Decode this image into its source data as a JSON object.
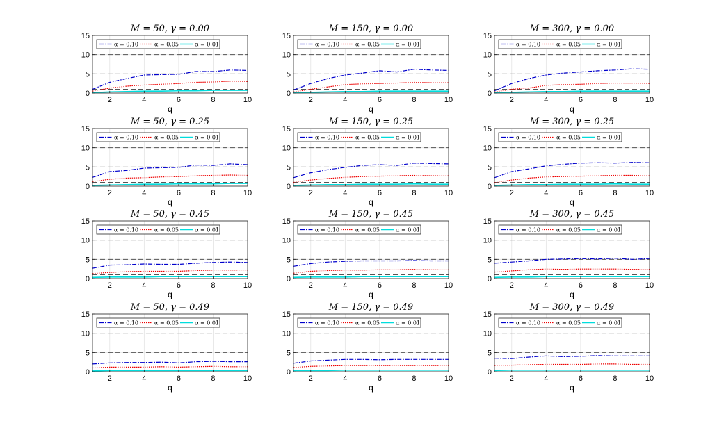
{
  "chart_data": {
    "type": "line",
    "layout_rows": 4,
    "layout_cols": 3,
    "grid": true,
    "legend_placement": "top-left",
    "xlabel": "q",
    "xlim": [
      1,
      10
    ],
    "ylim": [
      0,
      15
    ],
    "xticks": [
      2,
      4,
      6,
      8,
      10
    ],
    "yticks": [
      0,
      5,
      10,
      15
    ],
    "reference_lines": [
      {
        "y": 10,
        "color": "#555555",
        "style": "dashed"
      },
      {
        "y": 5,
        "color": "#555555",
        "style": "dashed"
      },
      {
        "y": 1,
        "color": "#555555",
        "style": "dashed"
      }
    ],
    "series_styles": [
      {
        "name": "α = 0.10",
        "color": "#0000cc",
        "style": "dash-dot"
      },
      {
        "name": "α = 0.05",
        "color": "#ee0000",
        "style": "dotted"
      },
      {
        "name": "α = 0.01",
        "color": "#00dddd",
        "style": "solid"
      }
    ],
    "x": [
      1,
      2,
      3,
      4,
      5,
      6,
      7,
      8,
      9,
      10
    ],
    "panels": [
      {
        "title": "M = 50, γ = 0.00",
        "series": [
          {
            "name": "α = 0.10",
            "values": [
              1.0,
              2.8,
              3.8,
              4.7,
              4.8,
              4.9,
              5.6,
              5.6,
              6.0,
              5.9
            ]
          },
          {
            "name": "α = 0.05",
            "values": [
              0.5,
              1.3,
              1.8,
              2.1,
              2.3,
              2.5,
              2.8,
              2.9,
              3.1,
              3.0
            ]
          },
          {
            "name": "α = 0.01",
            "values": [
              0.1,
              0.3,
              0.4,
              0.5,
              0.5,
              0.6,
              0.6,
              0.7,
              0.7,
              0.7
            ]
          }
        ]
      },
      {
        "title": "M = 150, γ = 0.00",
        "series": [
          {
            "name": "α = 0.10",
            "values": [
              0.8,
              2.5,
              3.8,
              4.7,
              5.2,
              5.8,
              5.5,
              6.2,
              6.0,
              5.9
            ]
          },
          {
            "name": "α = 0.05",
            "values": [
              0.3,
              1.0,
              1.6,
              2.2,
              2.4,
              2.5,
              2.6,
              2.8,
              2.7,
              2.7
            ]
          },
          {
            "name": "α = 0.01",
            "values": [
              0.1,
              0.2,
              0.3,
              0.4,
              0.4,
              0.5,
              0.5,
              0.5,
              0.5,
              0.5
            ]
          }
        ]
      },
      {
        "title": "M = 300, γ = 0.00",
        "series": [
          {
            "name": "α = 0.10",
            "values": [
              0.6,
              2.5,
              3.8,
              4.7,
              5.2,
              5.5,
              5.8,
              6.0,
              6.3,
              6.2
            ]
          },
          {
            "name": "α = 0.05",
            "values": [
              0.3,
              1.0,
              1.3,
              2.0,
              2.2,
              2.3,
              2.5,
              2.6,
              2.6,
              2.5
            ]
          },
          {
            "name": "α = 0.01",
            "values": [
              0.1,
              0.2,
              0.3,
              0.4,
              0.4,
              0.5,
              0.5,
              0.5,
              0.5,
              0.5
            ]
          }
        ]
      },
      {
        "title": "M = 50, γ = 0.25",
        "series": [
          {
            "name": "α = 0.10",
            "values": [
              2.3,
              3.8,
              4.1,
              4.7,
              4.8,
              4.9,
              5.5,
              5.4,
              5.8,
              5.6
            ]
          },
          {
            "name": "α = 0.05",
            "values": [
              1.2,
              1.8,
              2.1,
              2.2,
              2.4,
              2.5,
              2.7,
              2.8,
              2.9,
              2.8
            ]
          },
          {
            "name": "α = 0.01",
            "values": [
              0.2,
              0.3,
              0.4,
              0.5,
              0.5,
              0.6,
              0.6,
              0.6,
              0.7,
              0.7
            ]
          }
        ]
      },
      {
        "title": "M = 150, γ = 0.25",
        "series": [
          {
            "name": "α = 0.10",
            "values": [
              2.2,
              3.5,
              4.3,
              4.9,
              5.4,
              5.6,
              5.4,
              6.0,
              5.9,
              5.8
            ]
          },
          {
            "name": "α = 0.05",
            "values": [
              1.0,
              1.6,
              2.0,
              2.3,
              2.5,
              2.6,
              2.7,
              2.8,
              2.7,
              2.7
            ]
          },
          {
            "name": "α = 0.01",
            "values": [
              0.2,
              0.3,
              0.4,
              0.4,
              0.5,
              0.5,
              0.5,
              0.6,
              0.5,
              0.5
            ]
          }
        ]
      },
      {
        "title": "M = 300, γ = 0.25",
        "series": [
          {
            "name": "α = 0.10",
            "values": [
              2.2,
              3.8,
              4.5,
              5.3,
              5.7,
              6.0,
              6.1,
              6.0,
              6.2,
              6.1
            ]
          },
          {
            "name": "α = 0.05",
            "values": [
              0.9,
              1.6,
              2.1,
              2.4,
              2.5,
              2.6,
              2.7,
              2.8,
              2.8,
              2.7
            ]
          },
          {
            "name": "α = 0.01",
            "values": [
              0.2,
              0.3,
              0.4,
              0.4,
              0.5,
              0.5,
              0.5,
              0.6,
              0.5,
              0.5
            ]
          }
        ]
      },
      {
        "title": "M = 50, γ = 0.45",
        "series": [
          {
            "name": "α = 0.10",
            "values": [
              2.7,
              3.5,
              3.6,
              3.8,
              3.7,
              3.7,
              4.0,
              4.2,
              4.3,
              4.2
            ]
          },
          {
            "name": "α = 0.05",
            "values": [
              1.3,
              1.6,
              1.8,
              1.9,
              1.9,
              1.9,
              2.1,
              2.2,
              2.2,
              2.2
            ]
          },
          {
            "name": "α = 0.01",
            "values": [
              0.3,
              0.4,
              0.4,
              0.4,
              0.5,
              0.5,
              0.5,
              0.5,
              0.5,
              0.5
            ]
          }
        ]
      },
      {
        "title": "M = 150, γ = 0.45",
        "series": [
          {
            "name": "α = 0.10",
            "values": [
              3.2,
              3.9,
              4.3,
              4.5,
              4.6,
              4.6,
              4.6,
              4.7,
              4.6,
              4.6
            ]
          },
          {
            "name": "α = 0.05",
            "values": [
              1.4,
              1.9,
              2.1,
              2.2,
              2.2,
              2.3,
              2.3,
              2.4,
              2.3,
              2.3
            ]
          },
          {
            "name": "α = 0.01",
            "values": [
              0.3,
              0.4,
              0.4,
              0.4,
              0.5,
              0.5,
              0.5,
              0.5,
              0.5,
              0.5
            ]
          }
        ]
      },
      {
        "title": "M = 300, γ = 0.45",
        "series": [
          {
            "name": "α = 0.10",
            "values": [
              4.0,
              4.3,
              4.6,
              5.0,
              5.1,
              5.2,
              5.1,
              5.3,
              5.0,
              5.2
            ]
          },
          {
            "name": "α = 0.05",
            "values": [
              1.7,
              2.0,
              2.3,
              2.5,
              2.4,
              2.5,
              2.5,
              2.5,
              2.4,
              2.4
            ]
          },
          {
            "name": "α = 0.01",
            "values": [
              0.3,
              0.4,
              0.4,
              0.5,
              0.5,
              0.5,
              0.5,
              0.5,
              0.5,
              0.5
            ]
          }
        ]
      },
      {
        "title": "M = 50, γ = 0.49",
        "series": [
          {
            "name": "α = 0.10",
            "values": [
              2.0,
              2.3,
              2.4,
              2.4,
              2.5,
              2.3,
              2.6,
              2.7,
              2.6,
              2.6
            ]
          },
          {
            "name": "α = 0.05",
            "values": [
              1.0,
              1.2,
              1.2,
              1.2,
              1.3,
              1.2,
              1.3,
              1.4,
              1.3,
              1.3
            ]
          },
          {
            "name": "α = 0.01",
            "values": [
              0.2,
              0.3,
              0.3,
              0.3,
              0.3,
              0.3,
              0.3,
              0.3,
              0.3,
              0.3
            ]
          }
        ]
      },
      {
        "title": "M = 150, γ = 0.49",
        "series": [
          {
            "name": "α = 0.10",
            "values": [
              2.2,
              2.8,
              3.0,
              3.2,
              3.2,
              3.1,
              3.2,
              3.2,
              3.2,
              3.2
            ]
          },
          {
            "name": "α = 0.05",
            "values": [
              1.1,
              1.4,
              1.5,
              1.6,
              1.6,
              1.6,
              1.6,
              1.6,
              1.6,
              1.6
            ]
          },
          {
            "name": "α = 0.01",
            "values": [
              0.3,
              0.3,
              0.3,
              0.4,
              0.4,
              0.4,
              0.4,
              0.4,
              0.4,
              0.4
            ]
          }
        ]
      },
      {
        "title": "M = 300, γ = 0.49",
        "series": [
          {
            "name": "α = 0.10",
            "values": [
              3.5,
              3.4,
              3.8,
              4.1,
              3.9,
              4.0,
              4.2,
              4.1,
              4.1,
              4.1
            ]
          },
          {
            "name": "α = 0.05",
            "values": [
              1.6,
              1.7,
              1.8,
              1.9,
              1.9,
              1.9,
              2.0,
              2.0,
              1.9,
              1.9
            ]
          },
          {
            "name": "α = 0.01",
            "values": [
              0.3,
              0.4,
              0.4,
              0.4,
              0.4,
              0.4,
              0.4,
              0.4,
              0.4,
              0.4
            ]
          }
        ]
      }
    ]
  }
}
